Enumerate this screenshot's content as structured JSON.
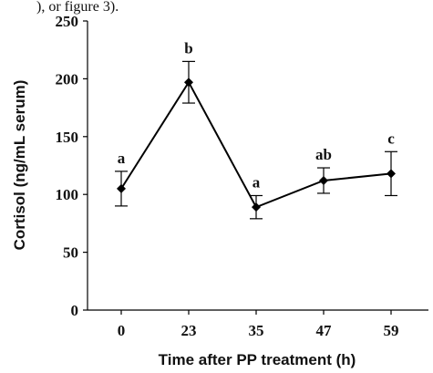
{
  "header_fragment": "), or figure 3).",
  "chart_data": {
    "type": "line",
    "title": "",
    "xlabel": "Time after PP treatment (h)",
    "ylabel": "Cortisol (ng/mL serum)",
    "ylim": [
      0,
      250
    ],
    "yticks": [
      "0",
      "50",
      "100",
      "150",
      "200",
      "250"
    ],
    "categories": [
      "0",
      "23",
      "35",
      "47",
      "59"
    ],
    "series": [
      {
        "values": [
          105,
          197,
          89,
          112,
          118
        ],
        "error": [
          15,
          18,
          10,
          11,
          19
        ],
        "labels": [
          "a",
          "b",
          "a",
          "ab",
          "c"
        ]
      }
    ],
    "grid": false,
    "legend": "none",
    "colors": {
      "line": "#000000",
      "marker": "#000000"
    }
  }
}
